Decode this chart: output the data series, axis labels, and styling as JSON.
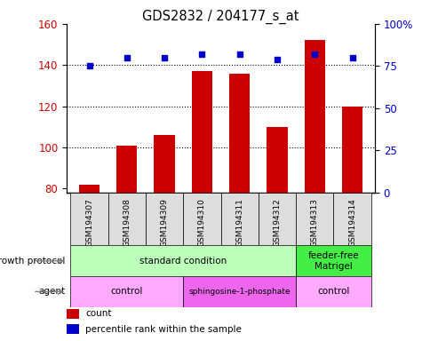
{
  "title": "GDS2832 / 204177_s_at",
  "samples": [
    "GSM194307",
    "GSM194308",
    "GSM194309",
    "GSM194310",
    "GSM194311",
    "GSM194312",
    "GSM194313",
    "GSM194314"
  ],
  "counts": [
    82,
    101,
    106,
    137,
    136,
    110,
    152,
    120
  ],
  "percentile_ranks": [
    75,
    80,
    80,
    82,
    82,
    79,
    82,
    80
  ],
  "bar_color": "#cc0000",
  "dot_color": "#0000cc",
  "ylim_left": [
    78,
    160
  ],
  "ylim_right": [
    0,
    100
  ],
  "yticks_left": [
    80,
    100,
    120,
    140,
    160
  ],
  "yticks_right": [
    0,
    25,
    50,
    75,
    100
  ],
  "ytick_labels_right": [
    "0",
    "25",
    "50",
    "75",
    "100%"
  ],
  "grid_lines": [
    100,
    120,
    140
  ],
  "growth_protocol_groups": [
    {
      "label": "standard condition",
      "start": 0,
      "end": 6,
      "color": "#bbffbb"
    },
    {
      "label": "feeder-free\nMatrigel",
      "start": 6,
      "end": 8,
      "color": "#44ee44"
    }
  ],
  "agent_groups": [
    {
      "label": "control",
      "start": 0,
      "end": 3,
      "color": "#ffaaff"
    },
    {
      "label": "sphingosine-1-phosphate",
      "start": 3,
      "end": 6,
      "color": "#ee66ee"
    },
    {
      "label": "control",
      "start": 6,
      "end": 8,
      "color": "#ffaaff"
    }
  ],
  "legend_count_color": "#cc0000",
  "legend_pct_color": "#0000cc",
  "bg_color": "#ffffff",
  "plot_bg_color": "#ffffff",
  "left_label_color": "#cc0000",
  "right_label_color": "#0000cc",
  "sample_box_color": "#dddddd"
}
